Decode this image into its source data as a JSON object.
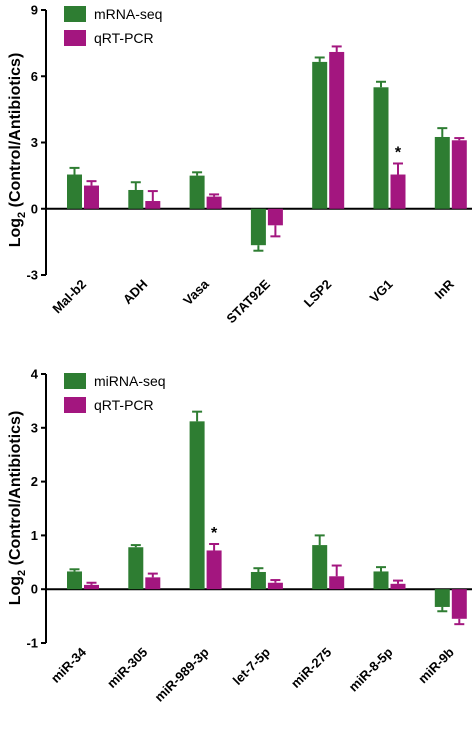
{
  "chart_data": [
    {
      "type": "bar",
      "categories": [
        "Mal-b2",
        "ADH",
        "Vasa",
        "STAT92E",
        "LSP2",
        "VG1",
        "InR"
      ],
      "series": [
        {
          "name": "mRNA-seq",
          "values": [
            1.55,
            0.85,
            1.5,
            -1.65,
            6.65,
            5.5,
            3.25
          ],
          "errors": [
            0.3,
            0.35,
            0.15,
            0.25,
            0.2,
            0.25,
            0.4
          ]
        },
        {
          "name": "qRT-PCR",
          "values": [
            1.05,
            0.35,
            0.55,
            -0.75,
            7.1,
            1.55,
            3.1
          ],
          "errors": [
            0.2,
            0.45,
            0.1,
            0.5,
            0.25,
            0.5,
            0.1
          ]
        }
      ],
      "ylabel": "Log2 (Control/Antibiotics)",
      "ylim": [
        -3,
        9
      ],
      "yticks": [
        "-3",
        "0",
        "3",
        "6",
        "9"
      ],
      "annotation": {
        "text": "*",
        "category_index": 5,
        "series_index": 1
      },
      "legend": "top-left"
    },
    {
      "type": "bar",
      "categories": [
        "miR-34",
        "miR-305",
        "miR-989-3p",
        "let-7-5p",
        "miR-275",
        "miR-8-5p",
        "miR-9b"
      ],
      "series": [
        {
          "name": "miRNA-seq",
          "values": [
            0.33,
            0.78,
            3.12,
            0.32,
            0.82,
            0.33,
            -0.33
          ],
          "errors": [
            0.04,
            0.04,
            0.18,
            0.07,
            0.18,
            0.08,
            0.08
          ]
        },
        {
          "name": "qRT-PCR",
          "values": [
            0.08,
            0.22,
            0.72,
            0.12,
            0.24,
            0.1,
            -0.55
          ],
          "errors": [
            0.04,
            0.07,
            0.12,
            0.05,
            0.2,
            0.06,
            0.1
          ]
        }
      ],
      "ylabel": "Log2 (Control/Antibiotics)",
      "ylim": [
        -1,
        4
      ],
      "yticks": [
        "-1",
        "0",
        "1",
        "2",
        "3",
        "4"
      ],
      "annotation": {
        "text": "*",
        "category_index": 2,
        "series_index": 1
      },
      "legend": "top-left"
    }
  ],
  "colors": {
    "series1": "#2e7d32",
    "series2": "#a3167f"
  }
}
